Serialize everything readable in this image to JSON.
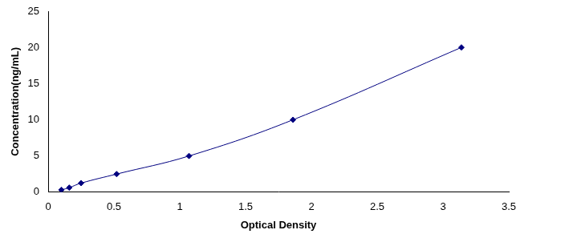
{
  "chart_data": {
    "type": "scatter",
    "x_label": "Optical Density",
    "y_label": "Concentration(ng/mL)",
    "x": [
      0.1,
      0.16,
      0.25,
      0.52,
      1.07,
      1.86,
      3.14
    ],
    "values": [
      0.312,
      0.625,
      1.25,
      2.5,
      5,
      10,
      20
    ],
    "color": "#000080",
    "marker": "diamond",
    "line_style": "solid",
    "xlim": [
      0,
      3.5
    ],
    "xticks": [
      0,
      0.5,
      1,
      1.5,
      2,
      2.5,
      3,
      3.5
    ],
    "ylim": [
      0,
      25
    ],
    "yticks": [
      0,
      5,
      10,
      15,
      20,
      25
    ],
    "grid": false
  }
}
